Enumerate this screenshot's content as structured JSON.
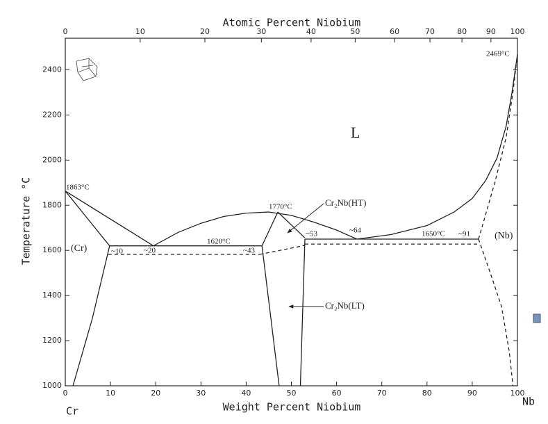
{
  "chart_data": {
    "type": "phase-diagram",
    "x_label": "Weight Percent Niobium",
    "x2_label": "Atomic Percent Niobium",
    "y_label": "Temperature °C",
    "left_element": "Cr",
    "right_element": "Nb",
    "xlim": [
      0,
      100
    ],
    "xticks": [
      0,
      10,
      20,
      30,
      40,
      50,
      60,
      70,
      80,
      90,
      100
    ],
    "x2ticks": [
      0,
      10,
      20,
      30,
      40,
      50,
      60,
      70,
      80,
      90,
      100
    ],
    "ylim": [
      1000,
      2540
    ],
    "yticks": [
      1000,
      1200,
      1400,
      1600,
      1800,
      2000,
      2200,
      2400
    ],
    "color": "#222222",
    "boundaries": [
      {
        "style": "solid",
        "x": [
          0,
          19.5
        ],
        "y": [
          1863,
          1620
        ]
      },
      {
        "style": "solid",
        "x": [
          0,
          9.8
        ],
        "y": [
          1863,
          1620
        ]
      },
      {
        "style": "solid",
        "x": [
          9.8,
          6,
          1.7
        ],
        "y": [
          1620,
          1300,
          1000
        ]
      },
      {
        "style": "solid",
        "x": [
          9.8,
          43.5
        ],
        "y": [
          1620,
          1620
        ]
      },
      {
        "style": "solid",
        "x": [
          19.5,
          25,
          30,
          35,
          40,
          45,
          50,
          55,
          60,
          64.5
        ],
        "y": [
          1620,
          1680,
          1720,
          1750,
          1765,
          1770,
          1755,
          1725,
          1690,
          1650
        ]
      },
      {
        "style": "solid",
        "x": [
          47,
          43.5
        ],
        "y": [
          1770,
          1620
        ]
      },
      {
        "style": "solid",
        "x": [
          47,
          53
        ],
        "y": [
          1770,
          1655
        ]
      },
      {
        "style": "solid",
        "x": [
          43.5,
          47.3
        ],
        "y": [
          1620,
          1000
        ]
      },
      {
        "style": "solid",
        "x": [
          53,
          52
        ],
        "y": [
          1650,
          1000
        ]
      },
      {
        "style": "solid",
        "x": [
          53,
          91.4
        ],
        "y": [
          1650,
          1650
        ]
      },
      {
        "style": "solid",
        "x": [
          64.5,
          72,
          80,
          86,
          90,
          93,
          95.5,
          97.5,
          98.8,
          100
        ],
        "y": [
          1650,
          1670,
          1710,
          1770,
          1830,
          1910,
          2010,
          2150,
          2300,
          2469
        ]
      },
      {
        "style": "dashed",
        "x": [
          91.4,
          95,
          97.5,
          99,
          100
        ],
        "y": [
          1650,
          1900,
          2100,
          2300,
          2469
        ]
      },
      {
        "style": "dashed",
        "x": [
          91.4,
          94,
          96.5,
          98.2,
          99
        ],
        "y": [
          1650,
          1500,
          1350,
          1150,
          1000
        ]
      },
      {
        "style": "dashed",
        "x": [
          9.5,
          43
        ],
        "y": [
          1582,
          1582
        ]
      },
      {
        "style": "dashed",
        "x": [
          43,
          53
        ],
        "y": [
          1582,
          1622
        ]
      },
      {
        "style": "dashed",
        "x": [
          53,
          91.4
        ],
        "y": [
          1628,
          1628
        ]
      }
    ],
    "annotations": [
      {
        "text": "1863°C"
      },
      {
        "text": "1770°C"
      },
      {
        "text": "1620°C"
      },
      {
        "text": "1650°C"
      },
      {
        "text": "2469°C"
      },
      {
        "text": "~10"
      },
      {
        "text": "~20"
      },
      {
        "text": "~43"
      },
      {
        "text": "~53"
      },
      {
        "text": "~64"
      },
      {
        "text": "~91"
      },
      {
        "text": "L"
      },
      {
        "text": "(Cr)"
      },
      {
        "text": "(Nb)"
      },
      {
        "text": "Cr₂Nb(HT)"
      },
      {
        "text": "Cr₂Nb(LT)"
      }
    ]
  }
}
